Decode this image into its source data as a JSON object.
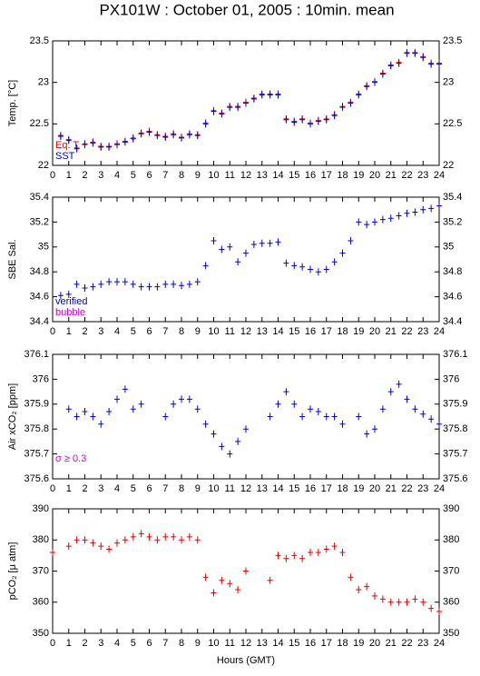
{
  "title": "PX101W : October 01, 2005 : 10min. mean",
  "chart_data": [
    {
      "type": "scatter",
      "ylabel": "Temp. [°C]",
      "ylim": [
        22,
        23.5
      ],
      "yticks": [
        22,
        22.5,
        23,
        23.5
      ],
      "xlim": [
        0,
        24
      ],
      "xticks": [
        0,
        1,
        2,
        3,
        4,
        5,
        6,
        7,
        8,
        9,
        10,
        11,
        12,
        13,
        14,
        15,
        16,
        17,
        18,
        19,
        20,
        21,
        22,
        23,
        24
      ],
      "x": [
        0,
        0.5,
        1,
        1.5,
        2,
        2.5,
        3,
        3.5,
        4,
        4.5,
        5,
        5.5,
        6,
        6.5,
        7,
        7.5,
        8,
        8.5,
        9,
        9.5,
        10,
        10.5,
        11,
        11.5,
        12,
        12.5,
        13,
        13.5,
        14,
        14.5,
        15,
        15.5,
        16,
        16.5,
        17,
        17.5,
        18,
        18.5,
        19,
        19.5,
        20,
        20.5,
        21,
        21.5,
        22,
        22.5,
        23,
        23.5,
        24
      ],
      "series": [
        {
          "name": "Eq. T",
          "color": "#e00000",
          "values": [
            null,
            22.36,
            22.31,
            22.21,
            22.26,
            22.28,
            22.23,
            22.23,
            22.26,
            22.29,
            22.33,
            22.39,
            22.41,
            22.37,
            22.35,
            22.38,
            22.34,
            22.38,
            22.37,
            22.51,
            22.66,
            22.63,
            22.71,
            22.71,
            22.76,
            22.81,
            22.86,
            22.86,
            22.86,
            22.56,
            22.53,
            22.56,
            22.51,
            22.54,
            22.56,
            22.61,
            22.71,
            22.76,
            22.86,
            22.96,
            23.01,
            23.11,
            23.21,
            23.24,
            23.36,
            23.36,
            23.31,
            23.23,
            23.23
          ]
        },
        {
          "name": "SST",
          "color": "#0000cc",
          "values": [
            null,
            22.35,
            22.3,
            22.2,
            22.25,
            22.27,
            22.22,
            22.22,
            22.25,
            22.28,
            22.32,
            22.38,
            22.4,
            22.36,
            22.34,
            22.37,
            22.33,
            22.37,
            22.36,
            22.5,
            22.65,
            22.62,
            22.7,
            22.7,
            22.75,
            22.8,
            22.85,
            22.85,
            22.85,
            22.55,
            22.52,
            22.55,
            22.5,
            22.53,
            22.55,
            22.6,
            22.7,
            22.75,
            22.85,
            22.95,
            23.0,
            23.1,
            23.2,
            23.23,
            23.35,
            23.35,
            23.3,
            23.22,
            23.22
          ]
        }
      ]
    },
    {
      "type": "scatter",
      "ylabel": "SBE Sal.",
      "ylim": [
        34.4,
        35.4
      ],
      "yticks": [
        34.4,
        34.6,
        34.8,
        35,
        35.2,
        35.4
      ],
      "xlim": [
        0,
        24
      ],
      "xticks": [
        0,
        1,
        2,
        3,
        4,
        5,
        6,
        7,
        8,
        9,
        10,
        11,
        12,
        13,
        14,
        15,
        16,
        17,
        18,
        19,
        20,
        21,
        22,
        23,
        24
      ],
      "x": [
        0,
        0.5,
        1,
        1.5,
        2,
        2.5,
        3,
        3.5,
        4,
        4.5,
        5,
        5.5,
        6,
        6.5,
        7,
        7.5,
        8,
        8.5,
        9,
        9.5,
        10,
        10.5,
        11,
        11.5,
        12,
        12.5,
        13,
        13.5,
        14,
        14.5,
        15,
        15.5,
        16,
        16.5,
        17,
        17.5,
        18,
        18.5,
        19,
        19.5,
        20,
        20.5,
        21,
        21.5,
        22,
        22.5,
        23,
        23.5,
        24
      ],
      "series": [
        {
          "name": "verified",
          "color": "#0000cc",
          "values": [
            null,
            34.61,
            34.62,
            34.7,
            34.67,
            34.68,
            34.7,
            34.72,
            34.72,
            34.72,
            34.7,
            34.68,
            34.68,
            34.68,
            34.7,
            34.7,
            34.69,
            34.7,
            34.72,
            34.85,
            35.05,
            34.98,
            35.0,
            34.88,
            34.95,
            35.02,
            35.03,
            35.03,
            35.04,
            34.87,
            34.85,
            34.84,
            34.82,
            34.8,
            34.82,
            34.88,
            34.95,
            35.05,
            35.2,
            35.18,
            35.2,
            35.22,
            35.23,
            35.25,
            35.27,
            35.28,
            35.3,
            35.31,
            35.33
          ]
        },
        {
          "name": "bubble",
          "color": "#cc00cc",
          "values": [
            null,
            null,
            null,
            null,
            null,
            null,
            null,
            null,
            null,
            null,
            null,
            null,
            null,
            null,
            null,
            null,
            null,
            null,
            null,
            null,
            null,
            null,
            null,
            null,
            null,
            null,
            null,
            null,
            null,
            null,
            null,
            null,
            null,
            null,
            null,
            null,
            null,
            null,
            null,
            null,
            null,
            null,
            null,
            null,
            null,
            null,
            null,
            null,
            null
          ]
        }
      ]
    },
    {
      "type": "scatter",
      "ylabel": "Air xCO₂ [ppm]",
      "annotation": "σ ≥ 0.3",
      "annotation_color": "#cc00cc",
      "ylim": [
        375.6,
        376.1
      ],
      "yticks": [
        375.6,
        375.7,
        375.8,
        375.9,
        376,
        376.1
      ],
      "xlim": [
        0,
        24
      ],
      "xticks": [
        0,
        1,
        2,
        3,
        4,
        5,
        6,
        7,
        8,
        9,
        10,
        11,
        12,
        13,
        14,
        15,
        16,
        17,
        18,
        19,
        20,
        21,
        22,
        23,
        24
      ],
      "x": [
        0,
        0.5,
        1,
        1.5,
        2,
        2.5,
        3,
        3.5,
        4,
        4.5,
        5,
        5.5,
        6,
        6.5,
        7,
        7.5,
        8,
        8.5,
        9,
        9.5,
        10,
        10.5,
        11,
        11.5,
        12,
        12.5,
        13,
        13.5,
        14,
        14.5,
        15,
        15.5,
        16,
        16.5,
        17,
        17.5,
        18,
        18.5,
        19,
        19.5,
        20,
        20.5,
        21,
        21.5,
        22,
        22.5,
        23,
        23.5,
        24
      ],
      "series": [
        {
          "color": "#0000cc",
          "values": [
            null,
            null,
            375.88,
            375.85,
            375.87,
            375.85,
            375.82,
            375.87,
            375.92,
            375.96,
            375.88,
            375.9,
            null,
            null,
            375.85,
            375.9,
            375.92,
            375.92,
            375.88,
            375.82,
            375.78,
            375.73,
            375.7,
            375.75,
            375.8,
            null,
            null,
            375.85,
            375.9,
            375.95,
            375.9,
            375.85,
            375.88,
            375.87,
            375.85,
            375.85,
            375.82,
            null,
            375.85,
            375.78,
            375.8,
            375.88,
            375.95,
            375.98,
            375.92,
            375.88,
            375.86,
            375.84,
            375.82
          ]
        }
      ]
    },
    {
      "type": "scatter",
      "ylabel": "pCO₂ [μ atm]",
      "xlabel": "Hours (GMT)",
      "ylim": [
        350,
        390
      ],
      "yticks": [
        350,
        360,
        370,
        380,
        390
      ],
      "xlim": [
        0,
        24
      ],
      "xticks": [
        0,
        1,
        2,
        3,
        4,
        5,
        6,
        7,
        8,
        9,
        10,
        11,
        12,
        13,
        14,
        15,
        16,
        17,
        18,
        19,
        20,
        21,
        22,
        23,
        24
      ],
      "x": [
        0,
        0.5,
        1,
        1.5,
        2,
        2.5,
        3,
        3.5,
        4,
        4.5,
        5,
        5.5,
        6,
        6.5,
        7,
        7.5,
        8,
        8.5,
        9,
        9.5,
        10,
        10.5,
        11,
        11.5,
        12,
        12.5,
        13,
        13.5,
        14,
        14.5,
        15,
        15.5,
        16,
        16.5,
        17,
        17.5,
        18,
        18.5,
        19,
        19.5,
        20,
        20.5,
        21,
        21.5,
        22,
        22.5,
        23,
        23.5,
        24
      ],
      "series": [
        {
          "color": "#e00000",
          "values": [
            376,
            null,
            378,
            380,
            380,
            379,
            378,
            377,
            379,
            380,
            381,
            382,
            381,
            380,
            381,
            381,
            380,
            381,
            380,
            368,
            363,
            367,
            366,
            364,
            370,
            null,
            null,
            367,
            375,
            374,
            375,
            374,
            376,
            376,
            377,
            378,
            376,
            368,
            364,
            365,
            362,
            361,
            360,
            360,
            360,
            361,
            360,
            358,
            357
          ]
        }
      ]
    }
  ]
}
